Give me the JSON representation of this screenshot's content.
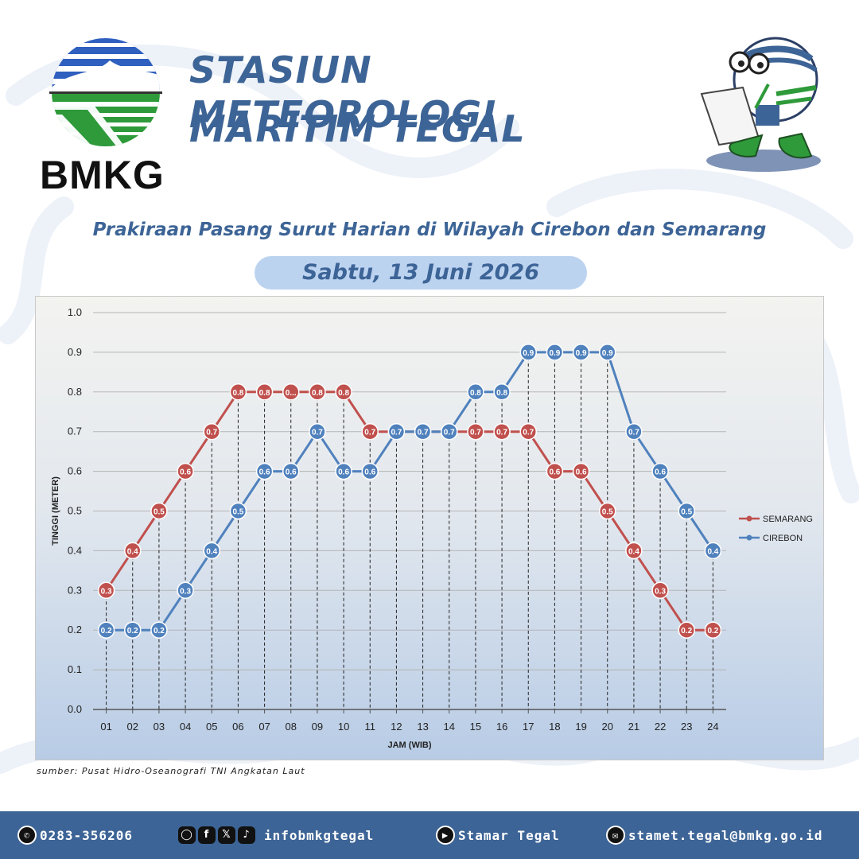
{
  "header": {
    "logo_text": "BMKG",
    "title_line1": "STASIUN METEOROLOGI",
    "title_line2": "MARITIM TEGAL",
    "subtitle": "Prakiraan Pasang Surut Harian di Wilayah Cirebon dan Semarang",
    "date": "Sabtu, 13 Juni 2026"
  },
  "colors": {
    "brand_blue": "#3d6496",
    "semarang": "#c0504d",
    "cirebon": "#4f81bd",
    "footer_bg": "#3d6496"
  },
  "chart_data": {
    "type": "line",
    "title": "",
    "xlabel": "JAM (WIB)",
    "ylabel": "TINGGI (METER)",
    "ylim": [
      0,
      1.0
    ],
    "yticks": [
      "0.0",
      "0.1",
      "0.2",
      "0.3",
      "0.4",
      "0.5",
      "0.6",
      "0.7",
      "0.8",
      "0.9",
      "1.0"
    ],
    "categories": [
      "01",
      "02",
      "03",
      "04",
      "05",
      "06",
      "07",
      "08",
      "09",
      "10",
      "11",
      "12",
      "13",
      "14",
      "15",
      "16",
      "17",
      "18",
      "19",
      "20",
      "21",
      "22",
      "23",
      "24"
    ],
    "legend_position": "right",
    "grid": true,
    "series": [
      {
        "name": "SEMARANG",
        "color": "#c0504d",
        "values": [
          0.3,
          0.4,
          0.5,
          0.6,
          0.7,
          0.8,
          0.8,
          0.8,
          0.8,
          0.8,
          0.7,
          0.7,
          0.7,
          0.7,
          0.7,
          0.7,
          0.7,
          0.6,
          0.6,
          0.5,
          0.4,
          0.3,
          0.2,
          0.2
        ],
        "labels": [
          "0.3",
          "0.4",
          "0.5",
          "0.6",
          "0.7",
          "0.8",
          "0.8",
          "0...",
          "0.8",
          "0.8",
          "0.7",
          "0.7",
          "0.7",
          "0.7",
          "0.7",
          "0.7",
          "0.7",
          "0.6",
          "0.6",
          "0.5",
          "0.4",
          "0.3",
          "0.2",
          "0.2"
        ]
      },
      {
        "name": "CIREBON",
        "color": "#4f81bd",
        "values": [
          0.2,
          0.2,
          0.2,
          0.3,
          0.4,
          0.5,
          0.6,
          0.6,
          0.7,
          0.6,
          0.6,
          0.7,
          0.7,
          0.7,
          0.8,
          0.8,
          0.9,
          0.9,
          0.9,
          0.9,
          0.7,
          0.6,
          0.5,
          0.4
        ],
        "labels": [
          "0.2",
          "0.2",
          "0.2",
          "0.3",
          "0.4",
          "0.5",
          "0.6",
          "0.6",
          "0.7",
          "0.6",
          "0.6",
          "0.7",
          "0.7",
          "0.7",
          "0.8",
          "0.8",
          "0.9",
          "0.9",
          "0.9",
          "0.9",
          "0.7",
          "0.6",
          "0.5",
          "0.4"
        ]
      }
    ],
    "source": "sumber: Pusat Hidro-Oseanografi TNI Angkatan Laut"
  },
  "footer": {
    "phone": "0283-356206",
    "social_handle": "infobmkgtegal",
    "youtube": "Stamar Tegal",
    "email": "stamet.tegal@bmkg.go.id",
    "social_icons": [
      "instagram-icon",
      "facebook-icon",
      "x-icon",
      "tiktok-icon"
    ]
  }
}
